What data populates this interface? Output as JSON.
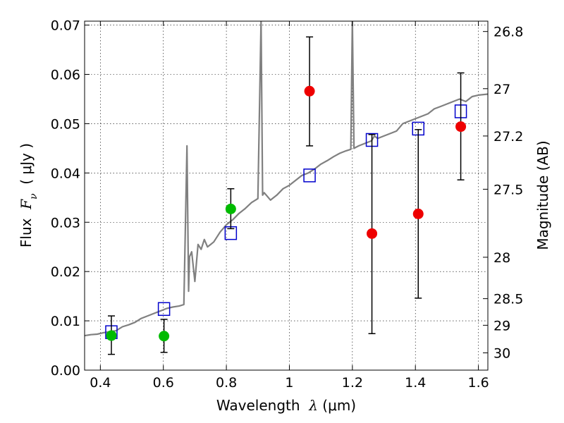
{
  "chart_data": {
    "type": "scatter",
    "xlabel": {
      "prefix": "Wavelength  ",
      "symbol": "λ",
      "unit": " (μm)"
    },
    "ylabel": {
      "prefix": "Flux  ",
      "symbol": "F",
      "sub": "ν",
      "unit": "  ( μJy )"
    },
    "ylabel_right": "Magnitude (AB)",
    "xlim": [
      0.35,
      1.63
    ],
    "ylim": [
      0.0,
      0.0708
    ],
    "grid": true,
    "x_ticks": [
      0.4,
      0.6,
      0.8,
      1.0,
      1.2,
      1.4,
      1.6
    ],
    "x_tick_labels": [
      "0.4",
      "0.6",
      "0.8",
      "1",
      "1.2",
      "1.4",
      "1.6"
    ],
    "y_ticks": [
      0.0,
      0.01,
      0.02,
      0.03,
      0.04,
      0.05,
      0.06,
      0.07
    ],
    "y_tick_labels": [
      "0.00",
      "0.01",
      "0.02",
      "0.03",
      "0.04",
      "0.05",
      "0.06",
      "0.07"
    ],
    "right_ticks": [
      {
        "flux": 0.0687,
        "label": "26.8"
      },
      {
        "flux": 0.0571,
        "label": "27"
      },
      {
        "flux": 0.0475,
        "label": "27.2"
      },
      {
        "flux": 0.0367,
        "label": "27.5"
      },
      {
        "flux": 0.0229,
        "label": "28"
      },
      {
        "flux": 0.0145,
        "label": "28.5"
      },
      {
        "flux": 0.0091,
        "label": "29"
      },
      {
        "flux": 0.0035,
        "label": "30"
      }
    ],
    "model_spectrum": {
      "color": "#808080",
      "x": [
        0.35,
        0.37,
        0.39,
        0.41,
        0.43,
        0.45,
        0.47,
        0.49,
        0.51,
        0.53,
        0.55,
        0.57,
        0.59,
        0.61,
        0.63,
        0.65,
        0.665,
        0.675,
        0.68,
        0.683,
        0.69,
        0.7,
        0.71,
        0.72,
        0.73,
        0.74,
        0.75,
        0.76,
        0.77,
        0.78,
        0.8,
        0.82,
        0.84,
        0.86,
        0.88,
        0.9,
        0.91,
        0.915,
        0.92,
        0.94,
        0.96,
        0.98,
        1.0,
        1.02,
        1.04,
        1.06,
        1.08,
        1.1,
        1.12,
        1.14,
        1.16,
        1.18,
        1.195,
        1.2,
        1.205,
        1.22,
        1.24,
        1.26,
        1.27,
        1.28,
        1.3,
        1.32,
        1.34,
        1.36,
        1.38,
        1.4,
        1.42,
        1.44,
        1.46,
        1.48,
        1.5,
        1.52,
        1.54,
        1.56,
        1.58,
        1.6,
        1.63
      ],
      "flux": [
        0.007,
        0.0072,
        0.0073,
        0.0076,
        0.0078,
        0.008,
        0.0088,
        0.0092,
        0.0097,
        0.0105,
        0.011,
        0.0115,
        0.012,
        0.0125,
        0.0128,
        0.013,
        0.0133,
        0.0455,
        0.016,
        0.023,
        0.024,
        0.018,
        0.0255,
        0.0245,
        0.0265,
        0.025,
        0.0255,
        0.026,
        0.027,
        0.028,
        0.0295,
        0.0305,
        0.0318,
        0.0328,
        0.034,
        0.0348,
        0.071,
        0.0355,
        0.036,
        0.0345,
        0.0355,
        0.0368,
        0.0375,
        0.0385,
        0.0395,
        0.04,
        0.0408,
        0.0418,
        0.0425,
        0.0433,
        0.044,
        0.0445,
        0.0448,
        0.071,
        0.045,
        0.0455,
        0.046,
        0.0465,
        0.0475,
        0.047,
        0.0475,
        0.048,
        0.0485,
        0.05,
        0.0505,
        0.051,
        0.0515,
        0.052,
        0.053,
        0.0535,
        0.054,
        0.0545,
        0.055,
        0.0545,
        0.0555,
        0.0558,
        0.056
      ]
    },
    "series": [
      {
        "marker": "open-square",
        "color": "#0000cc",
        "x": [
          0.435,
          0.602,
          0.814,
          1.064,
          1.262,
          1.409,
          1.544
        ],
        "y": [
          0.0077,
          0.0124,
          0.0278,
          0.0395,
          0.0467,
          0.049,
          0.0525
        ]
      },
      {
        "marker": "filled-circle",
        "color": "#00bb00",
        "x": [
          0.435,
          0.602,
          0.814
        ],
        "y": [
          0.007,
          0.0069,
          0.0327
        ],
        "err_low": [
          0.0032,
          0.0036,
          0.0287
        ],
        "err_high": [
          0.011,
          0.0103,
          0.0368
        ]
      },
      {
        "marker": "filled-circle",
        "color": "#ee0000",
        "x": [
          1.064,
          1.262,
          1.409,
          1.544
        ],
        "y": [
          0.0566,
          0.0277,
          0.0317,
          0.0494
        ],
        "err_low": [
          0.0455,
          0.0074,
          0.0146,
          0.0386
        ],
        "err_high": [
          0.0676,
          0.0478,
          0.0488,
          0.0603
        ]
      }
    ]
  }
}
